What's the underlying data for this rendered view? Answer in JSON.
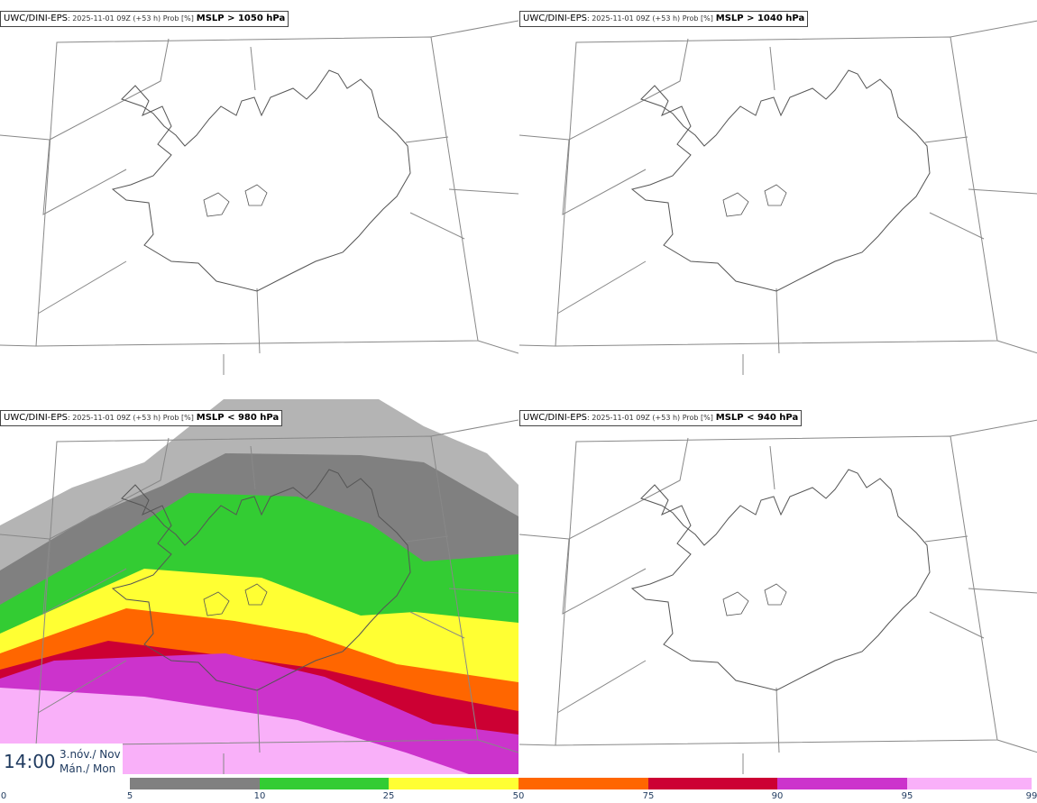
{
  "panels": [
    {
      "model": "UWC/DINI-EPS",
      "meta": ": 2025-11-01 09Z (+53 h) Prob [%]",
      "threshold": "MSLP > 1050 hPa",
      "filled": false
    },
    {
      "model": "UWC/DINI-EPS",
      "meta": ": 2025-11-01 09Z (+53 h) Prob [%]",
      "threshold": "MSLP > 1040 hPa",
      "filled": false
    },
    {
      "model": "UWC/DINI-EPS",
      "meta": ": 2025-11-01 09Z (+53 h) Prob [%]",
      "threshold": "MSLP < 980 hPa",
      "filled": true
    },
    {
      "model": "UWC/DINI-EPS",
      "meta": ": 2025-11-01 09Z (+53 h) Prob [%]",
      "threshold": "MSLP < 940 hPa",
      "filled": false
    }
  ],
  "time_box": {
    "time": "14:00",
    "date_line1": "3.nóv./ Nov",
    "date_line2": "Mán./ Mon"
  },
  "legend": {
    "ticks": [
      "0",
      "5",
      "10",
      "25",
      "50",
      "75",
      "90",
      "95",
      "99"
    ],
    "colors": [
      "#ffffff",
      "#b4b4b4",
      "#808080",
      "#33cc33",
      "#ffff33",
      "#ff6600",
      "#cc0033",
      "#cc33cc",
      "#f9b0f9"
    ]
  },
  "colors": {
    "border_line": "#888888",
    "coast_line": "#555555",
    "title_text": "#1f3a5f"
  }
}
